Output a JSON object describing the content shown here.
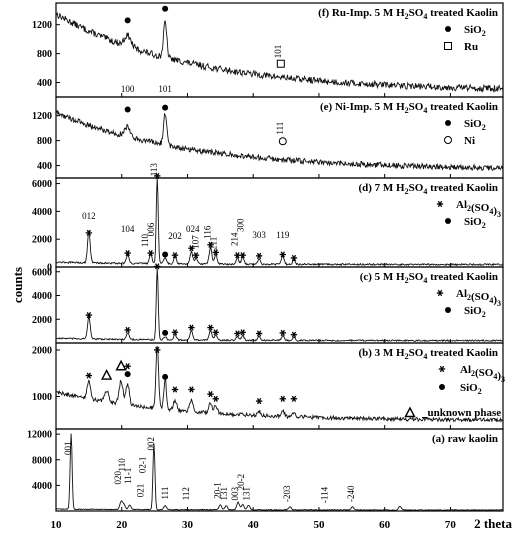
{
  "chart_data": {
    "type": "line",
    "xlabel": "2 theta",
    "ylabel": "counts",
    "xlim": [
      10,
      78
    ],
    "xticks": [
      10,
      20,
      30,
      40,
      50,
      60,
      70
    ],
    "panels": [
      {
        "id": "f",
        "title_parts": [
          "(f) Ru-Imp. 5 M H",
          "2",
          "SO",
          "4",
          " treated Kaolin"
        ],
        "ylim": [
          200,
          1500
        ],
        "yticks": [
          400,
          800,
          1200
        ],
        "legend": [
          {
            "symbol": "circle-filled",
            "label": "SiO",
            "sub": "2"
          },
          {
            "symbol": "square-open",
            "label": "Ru",
            "sub": ""
          }
        ],
        "background": {
          "start": 1350,
          "end": 280,
          "decay": 20,
          "noise": 45
        },
        "peaks": [
          [
            20.9,
            150,
            0.5
          ],
          [
            26.6,
            480,
            0.25
          ]
        ],
        "markers": [
          {
            "x": 20.9,
            "symbol": "circle-filled",
            "y": 1260
          },
          {
            "x": 26.6,
            "symbol": "circle-filled",
            "y": 1420
          },
          {
            "x": 44.2,
            "symbol": "square-open",
            "y": 660
          }
        ],
        "annotations": [
          {
            "x": 44.2,
            "text": "101",
            "y": 830,
            "rotate": -90
          }
        ]
      },
      {
        "id": "e",
        "title_parts": [
          "(e) Ni-Imp. 5 M H",
          "2",
          "SO",
          "4",
          " treated Kaolin"
        ],
        "ylim": [
          200,
          1500
        ],
        "yticks": [
          400,
          800,
          1200
        ],
        "legend": [
          {
            "symbol": "circle-filled",
            "label": "SiO",
            "sub": "2"
          },
          {
            "symbol": "circle-open",
            "label": "Ni",
            "sub": ""
          }
        ],
        "background": {
          "start": 1250,
          "end": 330,
          "decay": 20,
          "noise": 45
        },
        "peaks": [
          [
            20.9,
            150,
            0.5
          ],
          [
            26.6,
            500,
            0.25
          ]
        ],
        "markers": [
          {
            "x": 20.9,
            "symbol": "circle-filled",
            "y": 1300
          },
          {
            "x": 26.6,
            "symbol": "circle-filled",
            "y": 1330
          },
          {
            "x": 44.5,
            "symbol": "circle-open",
            "y": 790
          }
        ],
        "annotations": [
          {
            "x": 20.9,
            "text": "100",
            "y": 1580,
            "rotate": 0
          },
          {
            "x": 26.6,
            "text": "101",
            "y": 1580,
            "rotate": 0
          },
          {
            "x": 44.5,
            "text": "111",
            "y": 1000,
            "rotate": -90
          }
        ]
      },
      {
        "id": "d",
        "title_parts": [
          "(d) 7 M H",
          "2",
          "SO",
          "4",
          " treated Kaolin"
        ],
        "ylim": [
          0,
          6400
        ],
        "yticks": [
          0,
          2000,
          4000,
          6000
        ],
        "legend": [
          {
            "symbol": "asterisk",
            "label": "Al",
            "sub": "2",
            "label2": "(SO",
            "sub2": "4",
            "label3": ")",
            "sub3": "3"
          },
          {
            "symbol": "circle-filled",
            "label": "SiO",
            "sub": "2"
          }
        ],
        "background": {
          "start": 350,
          "end": 180,
          "decay": 15,
          "noise": 60
        },
        "peaks": [
          [
            15.0,
            2300,
            0.2
          ],
          [
            20.9,
            650,
            0.2
          ],
          [
            24.4,
            650,
            0.2
          ],
          [
            25.4,
            6200,
            0.15
          ],
          [
            26.6,
            450,
            0.2
          ],
          [
            28.1,
            500,
            0.2
          ],
          [
            30.6,
            900,
            0.2
          ],
          [
            31.3,
            450,
            0.2
          ],
          [
            33.5,
            1200,
            0.2
          ],
          [
            34.3,
            700,
            0.2
          ],
          [
            37.6,
            450,
            0.2
          ],
          [
            38.4,
            500,
            0.2
          ],
          [
            40.9,
            400,
            0.2
          ],
          [
            44.5,
            600,
            0.2
          ],
          [
            46.2,
            300,
            0.2
          ]
        ],
        "markers": [
          {
            "x": 15.0,
            "symbol": "asterisk",
            "y": 2450
          },
          {
            "x": 20.9,
            "symbol": "asterisk",
            "y": 1000
          },
          {
            "x": 24.4,
            "symbol": "asterisk",
            "y": 1000
          },
          {
            "x": 25.4,
            "symbol": "asterisk",
            "y": 6550
          },
          {
            "x": 26.6,
            "symbol": "circle-filled",
            "y": 900
          },
          {
            "x": 28.1,
            "symbol": "asterisk",
            "y": 850
          },
          {
            "x": 30.6,
            "symbol": "asterisk",
            "y": 1350
          },
          {
            "x": 31.3,
            "symbol": "asterisk",
            "y": 850
          },
          {
            "x": 33.5,
            "symbol": "asterisk",
            "y": 1600
          },
          {
            "x": 34.3,
            "symbol": "asterisk",
            "y": 1050
          },
          {
            "x": 37.6,
            "symbol": "asterisk",
            "y": 850
          },
          {
            "x": 38.4,
            "symbol": "asterisk",
            "y": 850
          },
          {
            "x": 40.9,
            "symbol": "asterisk",
            "y": 800
          },
          {
            "x": 44.5,
            "symbol": "asterisk",
            "y": 900
          },
          {
            "x": 46.2,
            "symbol": "asterisk",
            "y": 650
          }
        ],
        "annotations": [
          {
            "x": 15.0,
            "text": "012",
            "y": 3450,
            "rotate": 0
          },
          {
            "x": 20.9,
            "text": "104",
            "y": 2500,
            "rotate": 0
          },
          {
            "x": 24.0,
            "text": "110",
            "y": 1900,
            "rotate": -90
          },
          {
            "x": 24.9,
            "text": "006",
            "y": 2700,
            "rotate": -90
          },
          {
            "x": 25.4,
            "text": "113",
            "y": 7000,
            "rotate": -90
          },
          {
            "x": 28.1,
            "text": "202",
            "y": 2000,
            "rotate": 0
          },
          {
            "x": 30.8,
            "text": "024",
            "y": 2500,
            "rotate": 0
          },
          {
            "x": 31.7,
            "text": "107",
            "y": 1800,
            "rotate": -90
          },
          {
            "x": 33.5,
            "text": "116",
            "y": 2500,
            "rotate": -90
          },
          {
            "x": 34.4,
            "text": "211",
            "y": 1700,
            "rotate": -90
          },
          {
            "x": 37.6,
            "text": "214",
            "y": 2000,
            "rotate": -90
          },
          {
            "x": 38.5,
            "text": "300",
            "y": 3000,
            "rotate": -90
          },
          {
            "x": 40.9,
            "text": "303",
            "y": 2100,
            "rotate": 0
          },
          {
            "x": 44.5,
            "text": "119",
            "y": 2100,
            "rotate": 0
          }
        ]
      },
      {
        "id": "c",
        "title_parts": [
          "(c) 5 M H",
          "2",
          "SO",
          "4",
          " treated Kaolin"
        ],
        "ylim": [
          0,
          6400
        ],
        "yticks": [
          2000,
          4000,
          6000
        ],
        "legend": [
          {
            "symbol": "asterisk",
            "label": "Al",
            "sub": "2",
            "label2": "(SO",
            "sub2": "4",
            "label3": ")",
            "sub3": "3"
          },
          {
            "symbol": "circle-filled",
            "label": "SiO",
            "sub": "2"
          }
        ],
        "background": {
          "start": 400,
          "end": 200,
          "decay": 15,
          "noise": 60
        },
        "peaks": [
          [
            15.0,
            1900,
            0.2
          ],
          [
            20.9,
            600,
            0.2
          ],
          [
            25.4,
            6000,
            0.15
          ],
          [
            26.6,
            300,
            0.2
          ],
          [
            28.1,
            450,
            0.2
          ],
          [
            30.6,
            800,
            0.2
          ],
          [
            33.5,
            800,
            0.2
          ],
          [
            34.3,
            450,
            0.2
          ],
          [
            37.6,
            300,
            0.2
          ],
          [
            38.4,
            400,
            0.2
          ],
          [
            40.9,
            300,
            0.2
          ],
          [
            44.5,
            400,
            0.2
          ],
          [
            46.2,
            250,
            0.2
          ]
        ],
        "markers": [
          {
            "x": 15.0,
            "symbol": "asterisk",
            "y": 2350
          },
          {
            "x": 20.9,
            "symbol": "asterisk",
            "y": 1100
          },
          {
            "x": 25.4,
            "symbol": "asterisk",
            "y": 6450
          },
          {
            "x": 26.6,
            "symbol": "circle-filled",
            "y": 850
          },
          {
            "x": 28.1,
            "symbol": "asterisk",
            "y": 900
          },
          {
            "x": 30.6,
            "symbol": "asterisk",
            "y": 1300
          },
          {
            "x": 33.5,
            "symbol": "asterisk",
            "y": 1300
          },
          {
            "x": 34.3,
            "symbol": "asterisk",
            "y": 900
          },
          {
            "x": 37.6,
            "symbol": "asterisk",
            "y": 800
          },
          {
            "x": 38.4,
            "symbol": "asterisk",
            "y": 900
          },
          {
            "x": 40.9,
            "symbol": "asterisk",
            "y": 800
          },
          {
            "x": 44.5,
            "symbol": "asterisk",
            "y": 850
          },
          {
            "x": 46.2,
            "symbol": "asterisk",
            "y": 700
          }
        ],
        "annotations": []
      },
      {
        "id": "b",
        "title_parts": [
          "(b) 3 M H",
          "2",
          "SO",
          "4",
          " treated Kaolin"
        ],
        "ylim": [
          300,
          2150
        ],
        "yticks": [
          1000,
          2000
        ],
        "legend": [
          {
            "symbol": "asterisk",
            "label": "Al",
            "sub": "2",
            "label2": "(SO",
            "sub2": "4",
            "label3": ")",
            "sub3": "3"
          },
          {
            "symbol": "circle-filled",
            "label": "SiO",
            "sub": "2"
          },
          {
            "symbol": "triangle",
            "label": "unknown phase",
            "sub": ""
          }
        ],
        "background": {
          "start": 1100,
          "end": 480,
          "decay": 18,
          "noise": 40
        },
        "peaks": [
          [
            15.0,
            400,
            0.25
          ],
          [
            17.7,
            250,
            0.3
          ],
          [
            19.9,
            500,
            0.3
          ],
          [
            20.9,
            450,
            0.25
          ],
          [
            25.4,
            1350,
            0.2
          ],
          [
            26.6,
            650,
            0.2
          ],
          [
            28.1,
            200,
            0.25
          ],
          [
            30.6,
            250,
            0.25
          ],
          [
            33.5,
            200,
            0.25
          ],
          [
            34.3,
            150,
            0.25
          ],
          [
            40.9,
            100,
            0.25
          ],
          [
            44.5,
            120,
            0.25
          ],
          [
            46.2,
            80,
            0.25
          ]
        ],
        "markers": [
          {
            "x": 15.0,
            "symbol": "asterisk",
            "y": 1450
          },
          {
            "x": 17.7,
            "symbol": "triangle",
            "y": 1450
          },
          {
            "x": 19.9,
            "symbol": "triangle",
            "y": 1650
          },
          {
            "x": 20.9,
            "symbol": "asterisk",
            "y": 1650
          },
          {
            "x": 20.9,
            "symbol": "circle-filled",
            "y": 1480
          },
          {
            "x": 25.4,
            "symbol": "asterisk",
            "y": 2000
          },
          {
            "x": 26.6,
            "symbol": "circle-filled",
            "y": 1420
          },
          {
            "x": 28.1,
            "symbol": "asterisk",
            "y": 1150
          },
          {
            "x": 30.6,
            "symbol": "asterisk",
            "y": 1150
          },
          {
            "x": 33.5,
            "symbol": "asterisk",
            "y": 1050
          },
          {
            "x": 34.3,
            "symbol": "asterisk",
            "y": 950
          },
          {
            "x": 40.9,
            "symbol": "asterisk",
            "y": 900
          },
          {
            "x": 44.5,
            "symbol": "asterisk",
            "y": 950
          },
          {
            "x": 46.2,
            "symbol": "asterisk",
            "y": 950
          }
        ],
        "annotations": []
      },
      {
        "id": "a",
        "title_parts": [
          "(a) raw kaolin"
        ],
        "ylim": [
          0,
          12800
        ],
        "yticks": [
          4000,
          8000,
          12000
        ],
        "legend": [],
        "background": {
          "start": 300,
          "end": 150,
          "decay": 20,
          "noise": 60
        },
        "peaks": [
          [
            12.3,
            11800,
            0.15
          ],
          [
            19.9,
            1200,
            0.2
          ],
          [
            20.3,
            800,
            0.2
          ],
          [
            21.2,
            700,
            0.2
          ],
          [
            24.9,
            10300,
            0.15
          ],
          [
            26.6,
            600,
            0.2
          ],
          [
            35.0,
            800,
            0.2
          ],
          [
            35.9,
            600,
            0.2
          ],
          [
            37.7,
            1200,
            0.2
          ],
          [
            38.4,
            800,
            0.2
          ],
          [
            39.3,
            700,
            0.2
          ],
          [
            45.6,
            500,
            0.2
          ],
          [
            55.1,
            500,
            0.2
          ],
          [
            62.3,
            600,
            0.2
          ]
        ],
        "markers": [],
        "annotations": [
          {
            "x": 12.3,
            "text": "001",
            "y": 9800,
            "rotate": -90
          },
          {
            "x": 19.9,
            "text": "020",
            "y": 5200,
            "rotate": -90
          },
          {
            "x": 20.5,
            "text": "110",
            "y": 7200,
            "rotate": -90
          },
          {
            "x": 21.4,
            "text": "11-1",
            "y": 5500,
            "rotate": -90
          },
          {
            "x": 23.6,
            "text": "02-1",
            "y": 7200,
            "rotate": -90
          },
          {
            "x": 24.9,
            "text": "002",
            "y": 10500,
            "rotate": -90
          },
          {
            "x": 23.3,
            "text": "021",
            "y": 3200,
            "rotate": -90
          },
          {
            "x": 27.0,
            "text": "111",
            "y": 2800,
            "rotate": -90
          },
          {
            "x": 30.2,
            "text": "112",
            "y": 2700,
            "rotate": -90
          },
          {
            "x": 35.0,
            "text": "20-1",
            "y": 3200,
            "rotate": -90
          },
          {
            "x": 36.0,
            "text": "131",
            "y": 2700,
            "rotate": -90
          },
          {
            "x": 37.7,
            "text": "003",
            "y": 2700,
            "rotate": -90
          },
          {
            "x": 38.6,
            "text": "20-2",
            "y": 4500,
            "rotate": -90
          },
          {
            "x": 39.4,
            "text": "131",
            "y": 2700,
            "rotate": -90
          },
          {
            "x": 45.6,
            "text": "-203",
            "y": 2700,
            "rotate": -90
          },
          {
            "x": 51.3,
            "text": "-114",
            "y": 2500,
            "rotate": -90
          },
          {
            "x": 55.3,
            "text": "-240",
            "y": 2700,
            "rotate": -90
          }
        ]
      }
    ]
  }
}
